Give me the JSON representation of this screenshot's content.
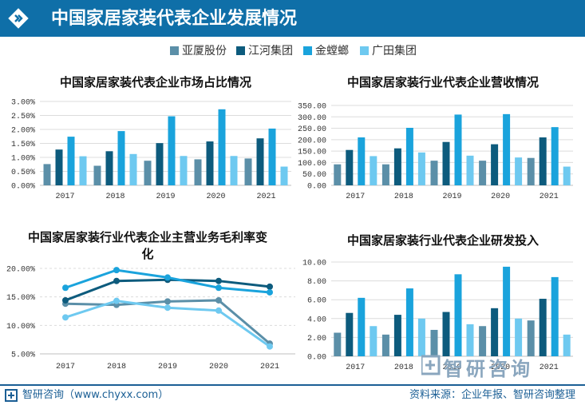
{
  "header": {
    "title": "中国家居家装代表企业发展情况",
    "icon": "diamond-chevrons-icon"
  },
  "legend": {
    "items": [
      {
        "label": "亚厦股份",
        "color": "#5b8fa8"
      },
      {
        "label": "江河集团",
        "color": "#0d5b7d"
      },
      {
        "label": "金螳螂",
        "color": "#1aa3dc"
      },
      {
        "label": "广田集团",
        "color": "#6ec9f0"
      }
    ]
  },
  "footer": {
    "left": "智研咨询（www.chyxx.com）",
    "right": "资料来源：企业年报、智研咨询整理",
    "logo_icon": "zhiyan-logo-icon"
  },
  "watermark": {
    "text": "智研咨询"
  },
  "chart_data": [
    {
      "type": "bar",
      "title": "中国家居家装代表企业市场占比情况",
      "categories": [
        "2017",
        "2018",
        "2019",
        "2020",
        "2021"
      ],
      "yticks": [
        "0.00%",
        "0.50%",
        "1.00%",
        "1.50%",
        "2.00%",
        "2.50%",
        "3.00%"
      ],
      "ylim": [
        0,
        3.0
      ],
      "unit": "%",
      "series": [
        {
          "name": "亚厦股份",
          "values": [
            0.76,
            0.7,
            0.88,
            0.93,
            0.96
          ]
        },
        {
          "name": "江河集团",
          "values": [
            1.28,
            1.22,
            1.51,
            1.57,
            1.68
          ]
        },
        {
          "name": "金螳螂",
          "values": [
            1.74,
            1.94,
            2.47,
            2.72,
            2.03
          ]
        },
        {
          "name": "广田集团",
          "values": [
            1.04,
            1.12,
            1.05,
            1.05,
            0.67
          ]
        }
      ]
    },
    {
      "type": "bar",
      "title": "中国家居家装行业代表企业营收情况",
      "categories": [
        "2017",
        "2018",
        "2019",
        "2020",
        "2021"
      ],
      "yticks": [
        "0.00",
        "50.00",
        "100.00",
        "150.00",
        "200.00",
        "250.00",
        "300.00",
        "350.00"
      ],
      "ylim": [
        0,
        350
      ],
      "series": [
        {
          "name": "亚厦股份",
          "values": [
            92,
            92,
            108,
            108,
            120
          ]
        },
        {
          "name": "江河集团",
          "values": [
            155,
            162,
            190,
            180,
            210
          ]
        },
        {
          "name": "金螳螂",
          "values": [
            210,
            252,
            310,
            312,
            255
          ]
        },
        {
          "name": "广田集团",
          "values": [
            128,
            144,
            130,
            122,
            82
          ]
        }
      ]
    },
    {
      "type": "line",
      "title": "中国家居家装行业代表企业主营业务毛利率变化",
      "categories": [
        "2017",
        "2018",
        "2019",
        "2020",
        "2021"
      ],
      "yticks": [
        "5.00%",
        "10.00%",
        "15.00%",
        "20.00%"
      ],
      "ylim": [
        5,
        20
      ],
      "series": [
        {
          "name": "亚厦股份",
          "values": [
            13.8,
            13.6,
            14.2,
            14.4,
            6.8
          ]
        },
        {
          "name": "江河集团",
          "values": [
            14.4,
            17.8,
            18.0,
            17.8,
            16.8
          ]
        },
        {
          "name": "金螳螂",
          "values": [
            16.6,
            19.7,
            18.4,
            16.6,
            15.8
          ]
        },
        {
          "name": "广田集团",
          "values": [
            11.4,
            14.3,
            13.1,
            12.6,
            6.3
          ]
        }
      ]
    },
    {
      "type": "bar",
      "title": "中国家居家装行业代表企业研发投入",
      "categories": [
        "2017",
        "2018",
        "2019",
        "2020",
        "2021"
      ],
      "yticks": [
        "0.00",
        "2.00",
        "4.00",
        "6.00",
        "8.00",
        "10.00"
      ],
      "ylim": [
        0,
        10
      ],
      "series": [
        {
          "name": "亚厦股份",
          "values": [
            2.5,
            2.3,
            2.8,
            3.2,
            3.8
          ]
        },
        {
          "name": "江河集团",
          "values": [
            4.6,
            4.4,
            4.7,
            5.1,
            6.1
          ]
        },
        {
          "name": "金螳螂",
          "values": [
            6.2,
            7.2,
            8.7,
            9.5,
            8.4
          ]
        },
        {
          "name": "广田集团",
          "values": [
            3.2,
            4.0,
            3.4,
            4.0,
            2.3
          ]
        }
      ]
    }
  ]
}
